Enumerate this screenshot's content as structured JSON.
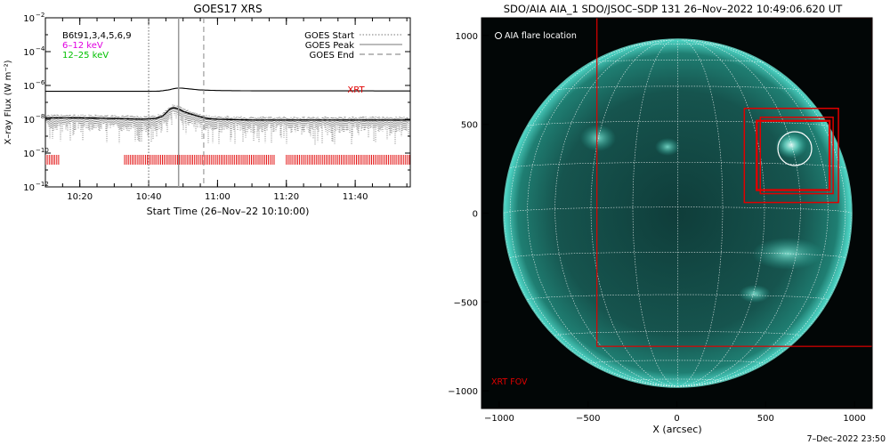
{
  "left": {
    "title": "GOES17 XRS",
    "ylabel": "X–ray Flux (W m⁻²)",
    "xlabel": "Start Time (26–Nov–22 10:10:00)",
    "y_ticks": [
      {
        "exp": -2,
        "label": "10",
        "sup": "−2"
      },
      {
        "exp": -4,
        "label": "10",
        "sup": "−4"
      },
      {
        "exp": -6,
        "label": "10",
        "sup": "−6"
      },
      {
        "exp": -8,
        "label": "10",
        "sup": "−8"
      },
      {
        "exp": -10,
        "label": "10",
        "sup": "−10"
      },
      {
        "exp": -12,
        "label": "10",
        "sup": "−12"
      }
    ],
    "x_ticks": [
      {
        "min": 10,
        "label": "10:20"
      },
      {
        "min": 30,
        "label": "10:40"
      },
      {
        "min": 50,
        "label": "11:00"
      },
      {
        "min": 70,
        "label": "11:20"
      },
      {
        "min": 90,
        "label": "11:40"
      }
    ],
    "legend_left": [
      {
        "text": "B6t91,3,4,5,6,9",
        "color": "#000000"
      },
      {
        "text": "6–12 keV",
        "color": "#e000e0"
      },
      {
        "text": "12–25 keV",
        "color": "#00c000"
      }
    ],
    "legend_right": [
      {
        "text": "GOES Start",
        "style": "dotted"
      },
      {
        "text": "GOES Peak",
        "style": "solid"
      },
      {
        "text": "GOES End",
        "style": "dashed"
      }
    ],
    "xrt_label": "XRT"
  },
  "right": {
    "title": "SDO/AIA AIA_1 SDO/JSOC–SDP 131 26–Nov–2022 10:49:06.620 UT",
    "xlabel": "X (arcsec)",
    "flare_legend": "AIA flare location",
    "xrt_fov_label": "XRT FOV",
    "x_ticks": [
      {
        "v": -1000,
        "label": "−1000"
      },
      {
        "v": -500,
        "label": "−500"
      },
      {
        "v": 0,
        "label": "0"
      },
      {
        "v": 500,
        "label": "500"
      },
      {
        "v": 1000,
        "label": "1000"
      }
    ],
    "y_ticks": [
      {
        "v": 1000,
        "label": "1000"
      },
      {
        "v": 500,
        "label": "500"
      },
      {
        "v": 0,
        "label": "0"
      },
      {
        "v": -500,
        "label": "−500"
      },
      {
        "v": -1000,
        "label": "−1000"
      }
    ]
  },
  "footer_date": "7–Dec–2022 23:50",
  "colors": {
    "xrt_red": "#e00000",
    "aia_teal": "#22b8a8",
    "grid_white": "#ffffff"
  },
  "chart_data": [
    {
      "type": "line",
      "title": "GOES17 XRS",
      "xlabel": "Start Time (26–Nov–22 10:10:00)",
      "ylabel": "X–ray Flux (W m⁻²)",
      "x_units": "minutes after 10:10:00",
      "xlim": [
        0,
        106
      ],
      "ylim": [
        1e-12,
        0.01
      ],
      "yscale": "log",
      "series": [
        {
          "name": "",
          "x": [
            0,
            20,
            30,
            33,
            36,
            37,
            38,
            39,
            40,
            42,
            45,
            50,
            60,
            70,
            80,
            90,
            100,
            106
          ],
          "values": [
            4.5e-07,
            4.5e-07,
            4.5e-07,
            4.6e-07,
            5.5e-07,
            6.3e-07,
            6.8e-07,
            7e-07,
            6.8e-07,
            6.2e-07,
            5.4e-07,
            5e-07,
            4.8e-07,
            4.8e-07,
            4.8e-07,
            4.8e-07,
            4.7e-07,
            4.7e-07
          ]
        },
        {
          "name": "",
          "x": [
            0,
            10,
            20,
            28,
            32,
            34,
            35,
            36,
            37,
            38,
            39,
            40,
            42,
            45,
            47,
            50,
            60,
            70,
            80,
            90,
            100,
            106
          ],
          "values": [
            1.2e-08,
            1.2e-08,
            1.1e-08,
            1e-08,
            1.1e-08,
            1.5e-08,
            2.3e-08,
            3.8e-08,
            4.8e-08,
            4.5e-08,
            3.8e-08,
            2.9e-08,
            2.1e-08,
            1.4e-08,
            1.1e-08,
            1e-08,
            9e-09,
            9e-09,
            9e-09,
            9e-09,
            9e-09,
            9e-09
          ]
        }
      ],
      "vertical_markers": [
        {
          "name": "GOES Start",
          "x": 30,
          "style": "dotted"
        },
        {
          "name": "GOES Peak",
          "x": 38.7,
          "style": "solid"
        },
        {
          "name": "GOES End",
          "x": 46,
          "style": "dashed"
        }
      ],
      "xrt_coverage_minutes": [
        [
          0,
          4
        ],
        [
          23,
          66.5
        ],
        [
          70,
          106
        ]
      ],
      "legend": "top"
    },
    {
      "type": "image",
      "title": "SDO/AIA AIA_1 SDO/JSOC–SDP 131 26–Nov–2022 10:49:06.620 UT",
      "xlabel": "X (arcsec)",
      "xlim": [
        -1100,
        1100
      ],
      "ylim": [
        -1100,
        1100
      ],
      "solar_radius_arcsec": 975,
      "grid_spacing_deg": 15,
      "flare_location": {
        "x": 660,
        "y": 370,
        "r": 100
      },
      "xrt_fov_boxes": [
        {
          "x0": -450,
          "x1": 1100,
          "y0": -750,
          "y1": 1100
        },
        {
          "x0": 380,
          "x1": 910,
          "y0": 60,
          "y1": 590
        },
        {
          "x0": 450,
          "x1": 860,
          "y0": 130,
          "y1": 520
        },
        {
          "x0": 470,
          "x1": 880,
          "y0": 110,
          "y1": 540
        }
      ]
    }
  ]
}
